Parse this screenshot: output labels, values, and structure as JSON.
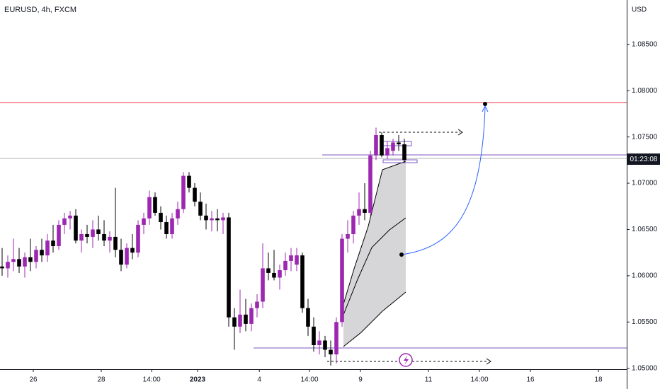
{
  "chart_data": {
    "type": "candlestick",
    "title": "EURUSD, 4h, FXCM",
    "y_axis_label": "USD",
    "countdown_label": "01:23:08",
    "open": [
      1.061,
      1.0608,
      1.0615,
      1.0618,
      1.061,
      1.062,
      1.0615,
      1.0628,
      1.0622,
      1.0638,
      1.0632,
      1.0655,
      1.0662,
      1.0665,
      1.0638,
      1.0645,
      1.0642,
      1.065,
      1.0645,
      1.0638,
      1.0642,
      1.0628,
      1.0612,
      1.063,
      1.0625,
      1.0655,
      1.0662,
      1.0685,
      1.0668,
      1.0658,
      1.0645,
      1.0662,
      1.0672,
      1.0708,
      1.0695,
      1.068,
      1.0665,
      1.066,
      1.0662,
      1.066,
      1.0663,
      1.0555,
      1.0545,
      1.0558,
      1.0548,
      1.0565,
      1.0572,
      1.0608,
      1.0603,
      1.0598,
      1.0606,
      1.0616,
      1.0612,
      1.0622,
      1.0565,
      1.0545,
      1.0525,
      1.053,
      1.052,
      1.0515,
      1.055,
      1.064,
      1.0645,
      1.0665,
      1.0672,
      1.0668,
      1.073,
      1.0752,
      1.073,
      1.0735,
      1.0744,
      1.0742
    ],
    "high": [
      1.063,
      1.0622,
      1.064,
      1.063,
      1.0625,
      1.064,
      1.0632,
      1.064,
      1.0645,
      1.0655,
      1.066,
      1.0668,
      1.067,
      1.0672,
      1.065,
      1.0655,
      1.066,
      1.0665,
      1.066,
      1.0648,
      1.0695,
      1.064,
      1.0635,
      1.0645,
      1.066,
      1.0668,
      1.0692,
      1.069,
      1.0675,
      1.0665,
      1.0668,
      1.068,
      1.0712,
      1.0712,
      1.07,
      1.069,
      1.0678,
      1.067,
      1.0672,
      1.0668,
      1.0668,
      1.0565,
      1.0585,
      1.0575,
      1.057,
      1.058,
      1.0635,
      1.0625,
      1.0628,
      1.0612,
      1.0625,
      1.063,
      1.063,
      1.0625,
      1.0575,
      1.0555,
      1.054,
      1.0535,
      1.053,
      1.0555,
      1.0645,
      1.066,
      1.067,
      1.069,
      1.07,
      1.0735,
      1.076,
      1.0755,
      1.0745,
      1.0748,
      1.0752,
      1.0748
    ],
    "low": [
      1.06,
      1.0598,
      1.0605,
      1.0603,
      1.0598,
      1.0605,
      1.0608,
      1.0615,
      1.0615,
      1.0625,
      1.0628,
      1.0645,
      1.065,
      1.0635,
      1.0625,
      1.0635,
      1.063,
      1.0638,
      1.0632,
      1.0625,
      1.062,
      1.0605,
      1.0608,
      1.0618,
      1.062,
      1.0645,
      1.0655,
      1.0665,
      1.065,
      1.064,
      1.064,
      1.0655,
      1.0668,
      1.069,
      1.0675,
      1.066,
      1.065,
      1.0648,
      1.0648,
      1.0645,
      1.0545,
      1.052,
      1.0538,
      1.054,
      1.054,
      1.0555,
      1.0565,
      1.0595,
      1.0595,
      1.0585,
      1.06,
      1.0605,
      1.0605,
      1.056,
      1.0535,
      1.0518,
      1.0515,
      1.0512,
      1.0503,
      1.0505,
      1.0545,
      1.0625,
      1.0635,
      1.0655,
      1.066,
      1.0665,
      1.0725,
      1.0728,
      1.0726,
      1.073,
      1.0735,
      1.0722
    ],
    "close": [
      1.0608,
      1.0615,
      1.0618,
      1.061,
      1.062,
      1.0615,
      1.0628,
      1.0622,
      1.0638,
      1.0632,
      1.0655,
      1.0662,
      1.0665,
      1.0638,
      1.0645,
      1.0642,
      1.065,
      1.0645,
      1.0638,
      1.0642,
      1.0628,
      1.0612,
      1.063,
      1.0625,
      1.0655,
      1.0662,
      1.0685,
      1.0668,
      1.0658,
      1.0645,
      1.0662,
      1.0672,
      1.0708,
      1.0695,
      1.068,
      1.0665,
      1.066,
      1.0662,
      1.066,
      1.0663,
      1.0555,
      1.0545,
      1.0558,
      1.0548,
      1.0565,
      1.0572,
      1.0608,
      1.0603,
      1.0598,
      1.0606,
      1.0616,
      1.0622,
      1.0622,
      1.0565,
      1.0545,
      1.0525,
      1.053,
      1.052,
      1.0515,
      1.055,
      1.064,
      1.0645,
      1.0665,
      1.0672,
      1.0668,
      1.073,
      1.0752,
      1.073,
      1.0738,
      1.0744,
      1.0742,
      1.0725
    ],
    "up_color": "#9c27b0",
    "down_color": "#000000",
    "ylim": [
      1.0499,
      1.0898
    ],
    "yticks": [
      {
        "value": 1.085,
        "label": "1.08500"
      },
      {
        "value": 1.08,
        "label": "1.08000"
      },
      {
        "value": 1.075,
        "label": "1.07500"
      },
      {
        "value": 1.07,
        "label": "1.07000"
      },
      {
        "value": 1.065,
        "label": "1.06500"
      },
      {
        "value": 1.06,
        "label": "1.06000"
      },
      {
        "value": 1.055,
        "label": "1.05500"
      },
      {
        "value": 1.05,
        "label": "1.05000"
      }
    ],
    "xlim": [
      -0.375,
      110.25
    ],
    "xticks": [
      {
        "value": 5.5,
        "label": "26"
      },
      {
        "value": 17.5,
        "label": "28"
      },
      {
        "value": 26.4,
        "label": "14:00"
      },
      {
        "value": 34.5,
        "label": "2023"
      },
      {
        "value": 45.4,
        "label": "4"
      },
      {
        "value": 54.25,
        "label": "14:00"
      },
      {
        "value": 63.25,
        "label": "9"
      },
      {
        "value": 75.25,
        "label": "11"
      },
      {
        "value": 84.25,
        "label": "14:00"
      },
      {
        "value": 93.25,
        "label": "16"
      },
      {
        "value": 105.25,
        "label": "18"
      }
    ],
    "grid": false
  }
}
